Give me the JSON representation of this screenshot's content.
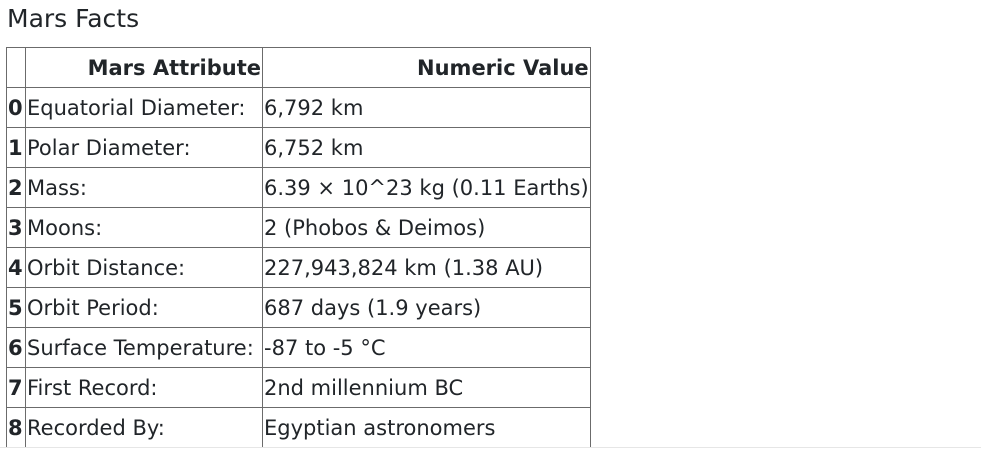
{
  "page": {
    "title": "Mars Facts"
  },
  "table": {
    "headers": [
      "",
      "Mars Attribute",
      "Numeric Value"
    ],
    "rows": [
      {
        "index": "0",
        "attribute": "Equatorial Diameter:",
        "value": "6,792 km"
      },
      {
        "index": "1",
        "attribute": "Polar Diameter:",
        "value": "6,752 km"
      },
      {
        "index": "2",
        "attribute": "Mass:",
        "value": "6.39 × 10^23 kg (0.11 Earths)"
      },
      {
        "index": "3",
        "attribute": "Moons:",
        "value": "2 (Phobos & Deimos)"
      },
      {
        "index": "4",
        "attribute": "Orbit Distance:",
        "value": "227,943,824 km (1.38 AU)"
      },
      {
        "index": "5",
        "attribute": "Orbit Period:",
        "value": "687 days (1.9 years)"
      },
      {
        "index": "6",
        "attribute": "Surface Temperature:",
        "value": "-87 to -5 °C"
      },
      {
        "index": "7",
        "attribute": "First Record:",
        "value": "2nd millennium BC"
      },
      {
        "index": "8",
        "attribute": "Recorded By:",
        "value": "Egyptian astronomers"
      }
    ]
  }
}
